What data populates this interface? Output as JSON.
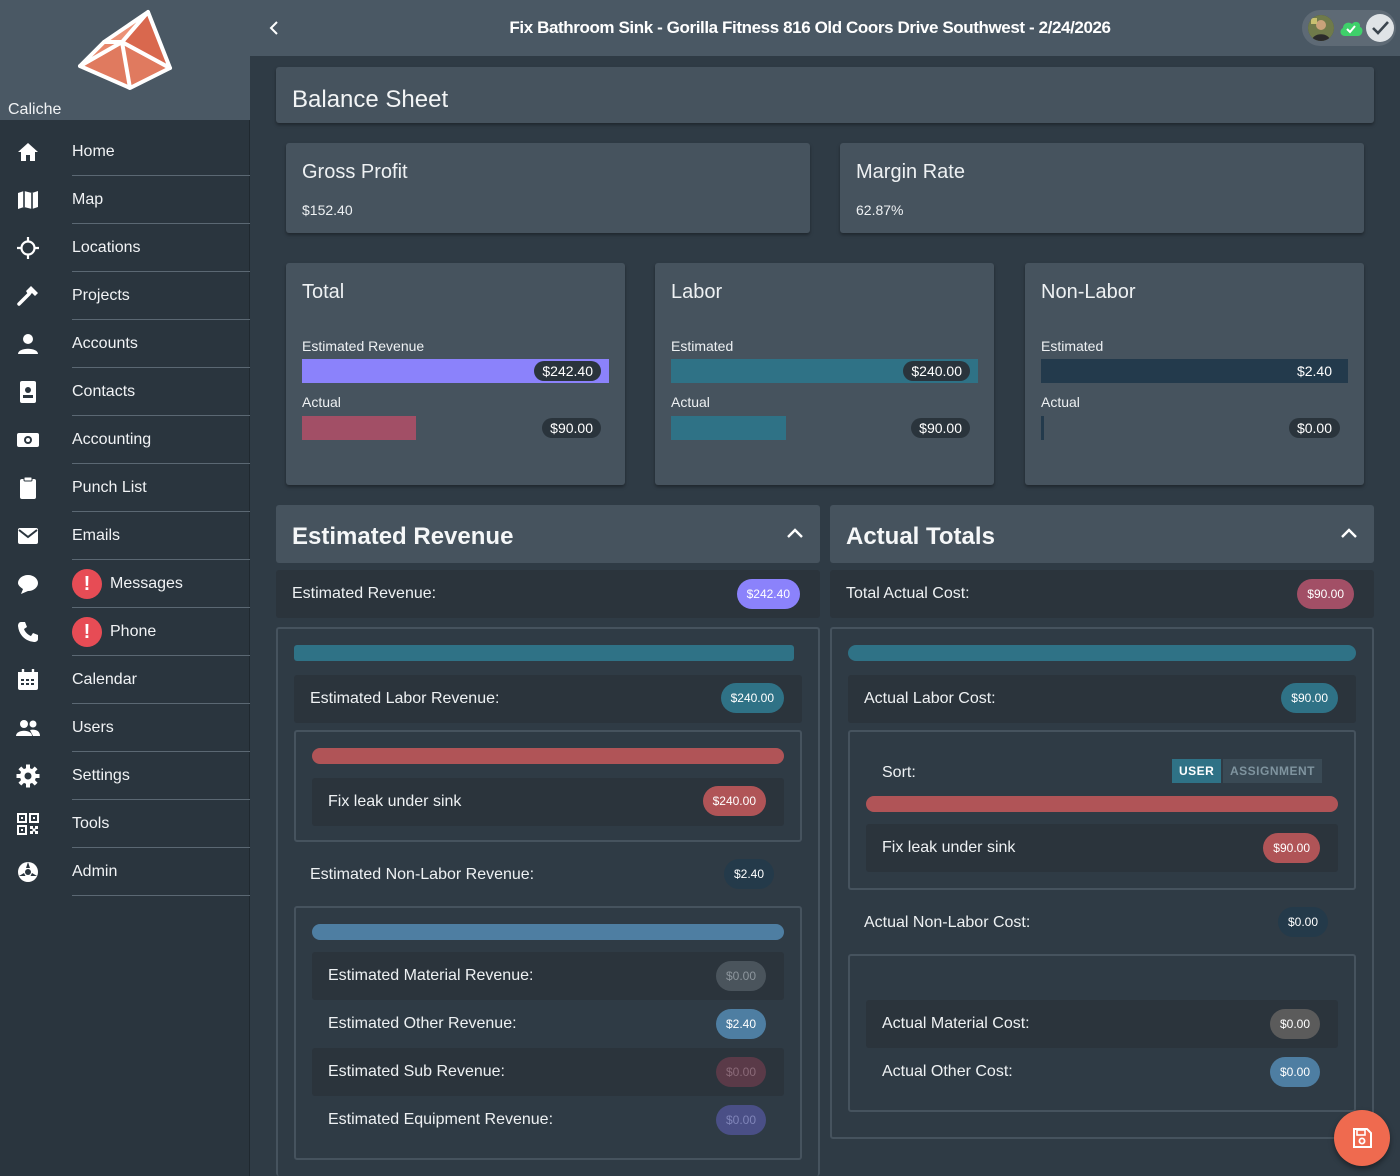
{
  "brand": {
    "name": "Caliche",
    "accent": "#e07a5f"
  },
  "topbar": {
    "title": "Fix Bathroom Sink - Gorilla Fitness 816 Old Coors Drive Southwest - 2/24/2026",
    "icons": [
      "chevron-left-icon",
      "avatar",
      "cloud-check-icon",
      "check-icon"
    ]
  },
  "sidebar": {
    "items": [
      {
        "label": "Home",
        "icon": "home-icon"
      },
      {
        "label": "Map",
        "icon": "map-icon"
      },
      {
        "label": "Locations",
        "icon": "crosshair-icon"
      },
      {
        "label": "Projects",
        "icon": "hammer-icon"
      },
      {
        "label": "Accounts",
        "icon": "person-icon"
      },
      {
        "label": "Contacts",
        "icon": "badge-icon"
      },
      {
        "label": "Accounting",
        "icon": "money-icon"
      },
      {
        "label": "Punch List",
        "icon": "clipboard-icon"
      },
      {
        "label": "Emails",
        "icon": "mail-icon"
      },
      {
        "label": "Messages",
        "icon": "chat-icon",
        "badge": "!"
      },
      {
        "label": "Phone",
        "icon": "phone-icon",
        "badge": "!"
      },
      {
        "label": "Calendar",
        "icon": "calendar-icon"
      },
      {
        "label": "Users",
        "icon": "users-icon"
      },
      {
        "label": "Settings",
        "icon": "gear-icon"
      },
      {
        "label": "Tools",
        "icon": "qr-icon"
      },
      {
        "label": "Admin",
        "icon": "admin-icon"
      }
    ]
  },
  "balance_sheet": {
    "title": "Balance Sheet"
  },
  "gross_profit": {
    "title": "Gross Profit",
    "value": "$152.40"
  },
  "margin_rate": {
    "title": "Margin Rate",
    "value": "62.87%"
  },
  "summary_cards": {
    "total": {
      "title": "Total",
      "est_label": "Estimated Revenue",
      "est_value": "$242.40",
      "act_label": "Actual",
      "act_value": "$90.00",
      "est_fraction": 1.0,
      "act_fraction": 0.371,
      "est_color": "#8b82fb",
      "act_color": "#a24f66"
    },
    "labor": {
      "title": "Labor",
      "est_label": "Estimated",
      "est_value": "$240.00",
      "act_label": "Actual",
      "act_value": "$90.00",
      "est_fraction": 1.0,
      "act_fraction": 0.375,
      "est_color": "#2f7286",
      "act_color": "#2f7286"
    },
    "nonlabor": {
      "title": "Non-Labor",
      "est_label": "Estimated",
      "est_value": "$2.40",
      "act_label": "Actual",
      "act_value": "$0.00",
      "est_fraction": 1.0,
      "act_fraction": 0.0,
      "est_color": "#233a4c",
      "act_color": "#233a4c"
    }
  },
  "estimated_revenue": {
    "title": "Estimated Revenue",
    "total_label": "Estimated Revenue:",
    "total_value": "$242.40",
    "labor_label": "Estimated Labor Revenue:",
    "labor_value": "$240.00",
    "labor_items": [
      {
        "label": "Fix leak under sink",
        "value": "$240.00"
      }
    ],
    "nonlabor_label": "Estimated Non-Labor Revenue:",
    "nonlabor_value": "$2.40",
    "nonlabor_items": [
      {
        "label": "Estimated Material Revenue:",
        "value": "$0.00"
      },
      {
        "label": "Estimated Other Revenue:",
        "value": "$2.40"
      },
      {
        "label": "Estimated Sub Revenue:",
        "value": "$0.00"
      },
      {
        "label": "Estimated Equipment Revenue:",
        "value": "$0.00"
      }
    ]
  },
  "actual_totals": {
    "title": "Actual Totals",
    "total_label": "Total Actual Cost:",
    "total_value": "$90.00",
    "labor_label": "Actual Labor Cost:",
    "labor_value": "$90.00",
    "sort_label": "Sort:",
    "sort_options": [
      "USER",
      "ASSIGNMENT"
    ],
    "sort_selected": "USER",
    "labor_items": [
      {
        "label": "Fix leak under sink",
        "value": "$90.00"
      }
    ],
    "nonlabor_label": "Actual Non-Labor Cost:",
    "nonlabor_value": "$0.00",
    "nonlabor_items": [
      {
        "label": "Actual Material Cost:",
        "value": "$0.00"
      },
      {
        "label": "Actual Other Cost:",
        "value": "$0.00"
      }
    ]
  },
  "fab": {
    "icon": "save-icon"
  }
}
